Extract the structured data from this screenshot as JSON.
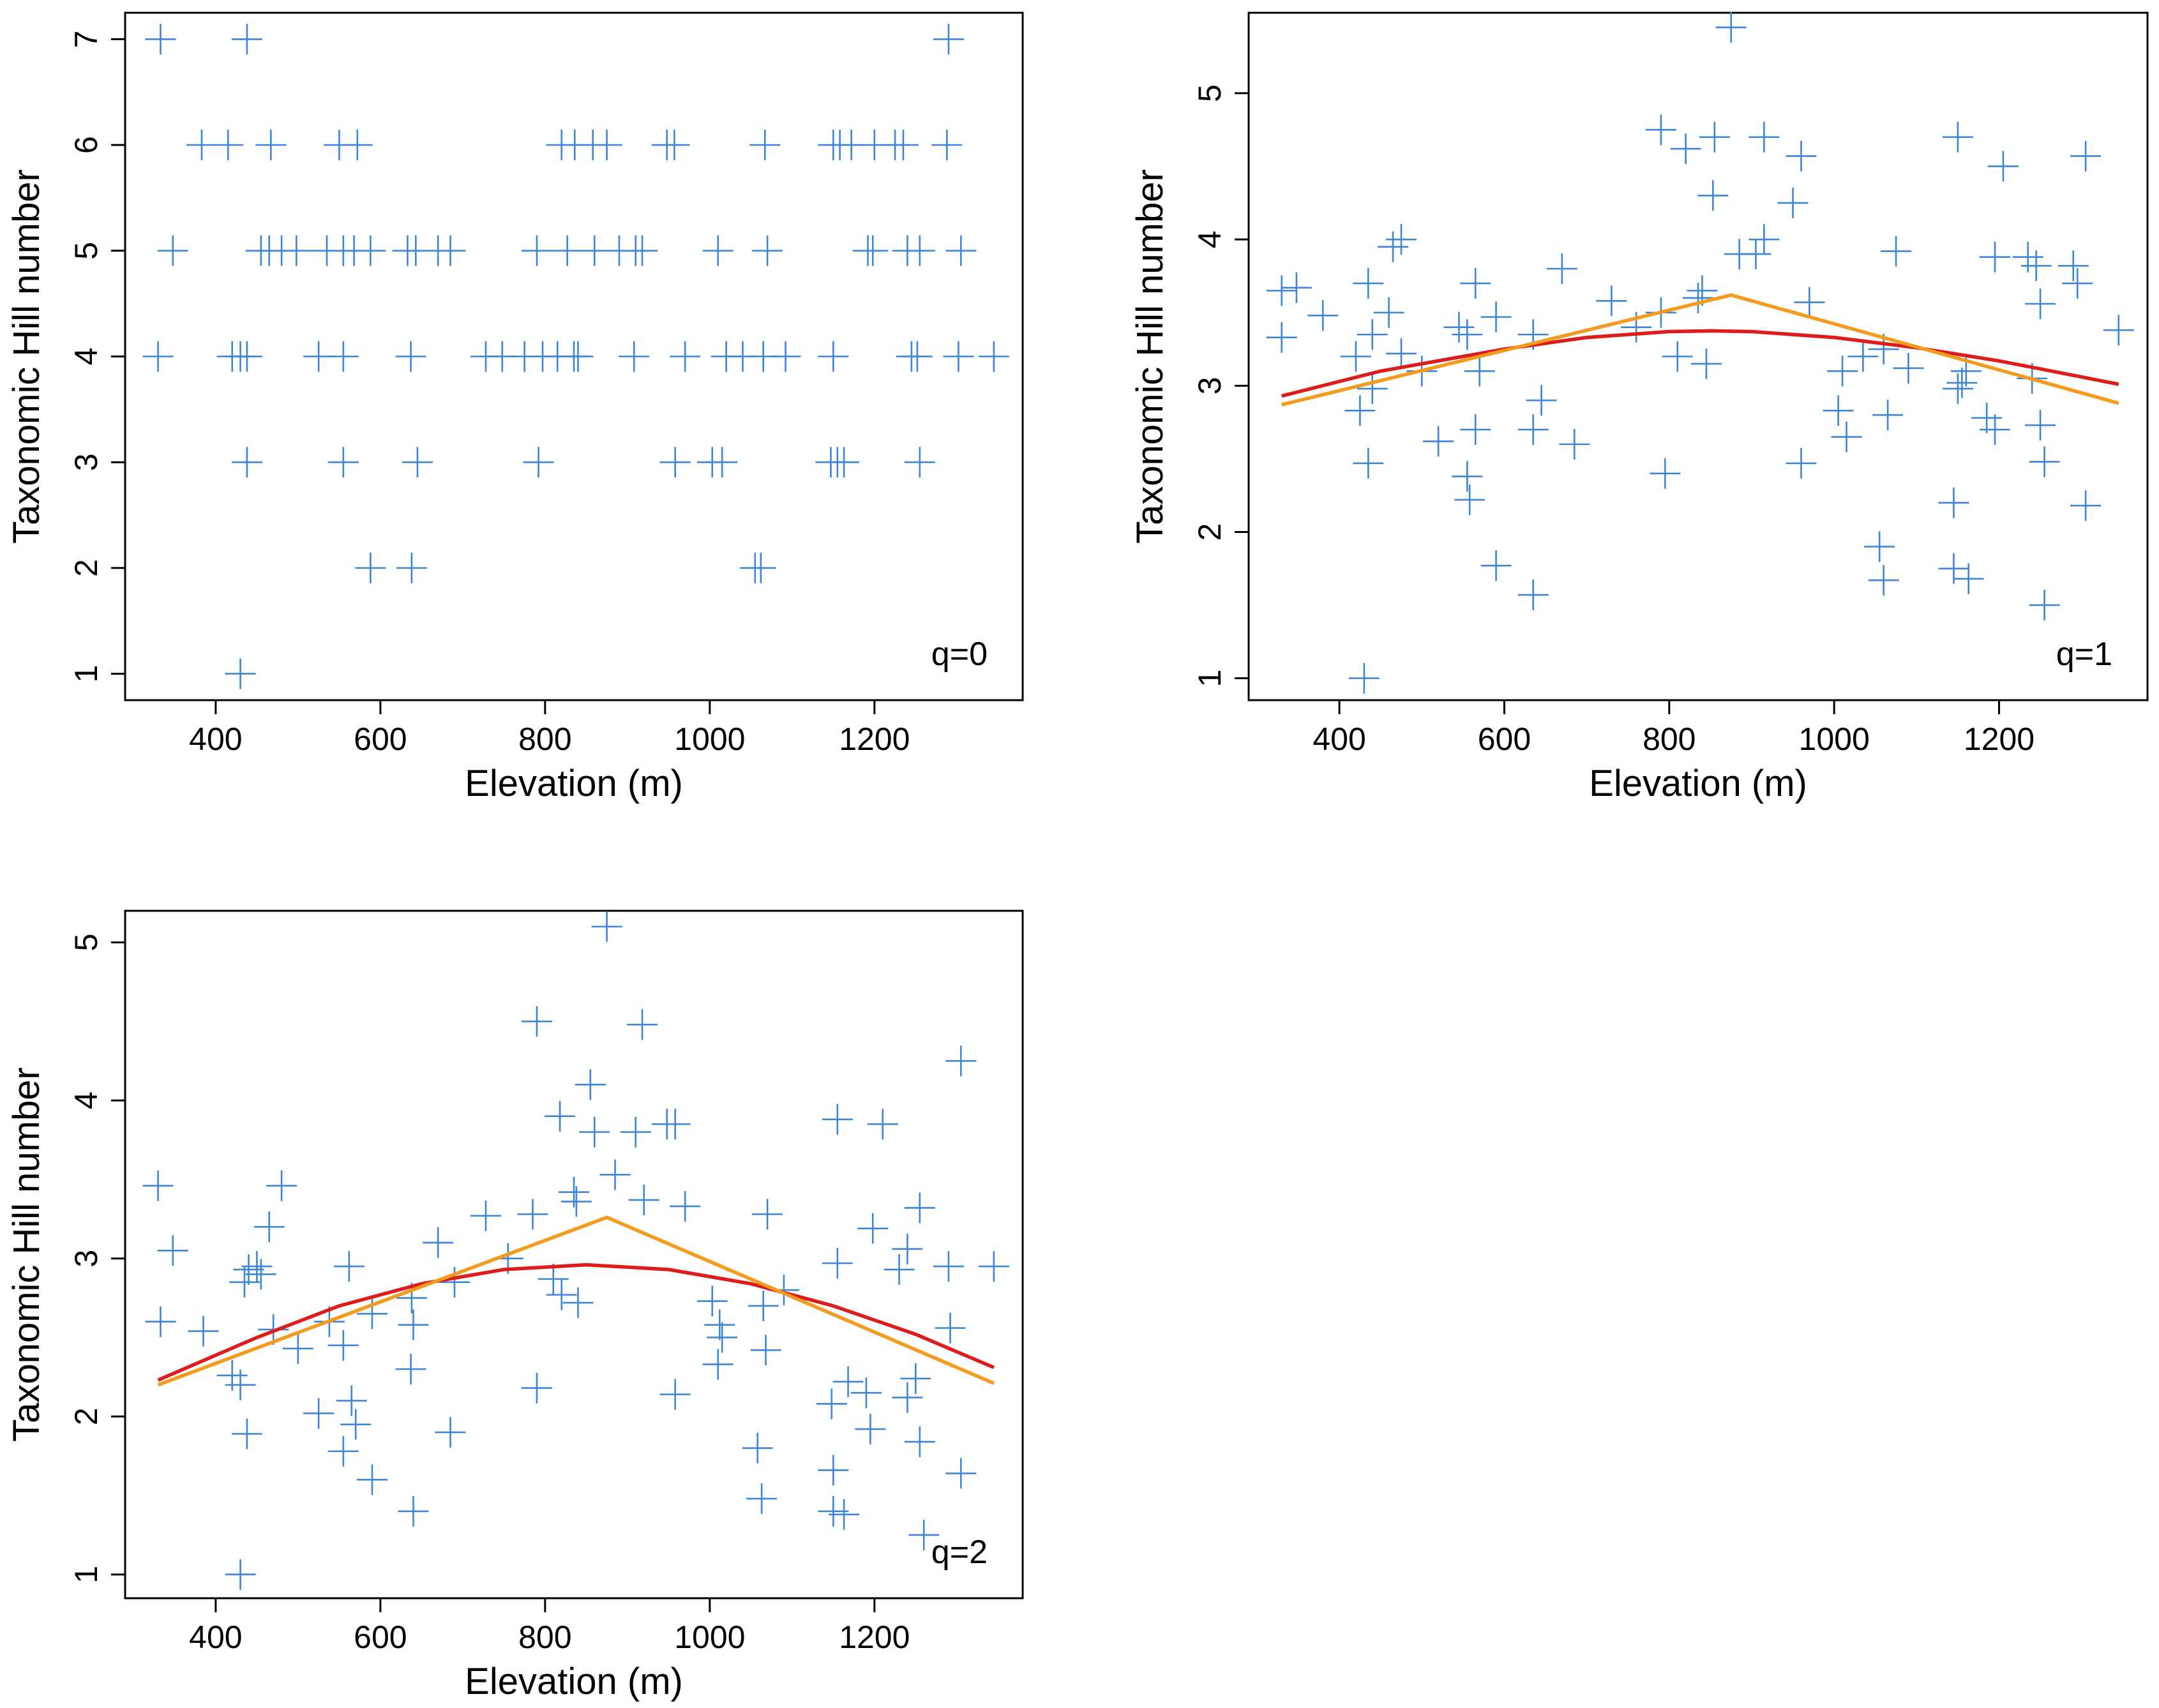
{
  "figure": {
    "description": "",
    "point_color": "#3d86d6",
    "quadratic_fit_color": "#dd1c1c",
    "segmented_fit_color": "#f29b1f"
  },
  "chart_data": [
    {
      "type": "scatter",
      "panel_label": "q=0",
      "xlabel": "Elevation (m)",
      "ylabel": "Taxonomic Hill number",
      "xlim": [
        290,
        1380
      ],
      "ylim": [
        0.75,
        7.25
      ],
      "xticks": [
        400,
        600,
        800,
        1000,
        1200
      ],
      "yticks": [
        1,
        2,
        3,
        4,
        5,
        6,
        7
      ],
      "grid": false,
      "marker": "plus",
      "points": [
        [
          333,
          7
        ],
        [
          438,
          7
        ],
        [
          1290,
          7
        ],
        [
          383,
          6
        ],
        [
          415,
          6
        ],
        [
          467,
          6
        ],
        [
          550,
          6
        ],
        [
          572,
          6
        ],
        [
          820,
          6
        ],
        [
          836,
          6
        ],
        [
          858,
          6
        ],
        [
          875,
          6
        ],
        [
          948,
          6
        ],
        [
          957,
          6
        ],
        [
          1067,
          6
        ],
        [
          1150,
          6
        ],
        [
          1158,
          6
        ],
        [
          1172,
          6
        ],
        [
          1200,
          6
        ],
        [
          1225,
          6
        ],
        [
          1235,
          6
        ],
        [
          1288,
          6
        ],
        [
          348,
          5
        ],
        [
          455,
          5
        ],
        [
          465,
          5
        ],
        [
          480,
          5
        ],
        [
          498,
          5
        ],
        [
          535,
          5
        ],
        [
          555,
          5
        ],
        [
          568,
          5
        ],
        [
          588,
          5
        ],
        [
          633,
          5
        ],
        [
          643,
          5
        ],
        [
          670,
          5
        ],
        [
          685,
          5
        ],
        [
          790,
          5
        ],
        [
          827,
          5
        ],
        [
          860,
          5
        ],
        [
          890,
          5
        ],
        [
          910,
          5
        ],
        [
          918,
          5
        ],
        [
          1010,
          5
        ],
        [
          1070,
          5
        ],
        [
          1192,
          5
        ],
        [
          1198,
          5
        ],
        [
          1240,
          5
        ],
        [
          1255,
          5
        ],
        [
          1305,
          5
        ],
        [
          330,
          4
        ],
        [
          420,
          4
        ],
        [
          430,
          4
        ],
        [
          438,
          4
        ],
        [
          525,
          4
        ],
        [
          555,
          4
        ],
        [
          637,
          4
        ],
        [
          728,
          4
        ],
        [
          748,
          4
        ],
        [
          775,
          4
        ],
        [
          797,
          4
        ],
        [
          815,
          4
        ],
        [
          835,
          4
        ],
        [
          840,
          4
        ],
        [
          908,
          4
        ],
        [
          970,
          4
        ],
        [
          1020,
          4
        ],
        [
          1040,
          4
        ],
        [
          1065,
          4
        ],
        [
          1092,
          4
        ],
        [
          1150,
          4
        ],
        [
          1245,
          4
        ],
        [
          1252,
          4
        ],
        [
          1302,
          4
        ],
        [
          1345,
          4
        ],
        [
          438,
          3
        ],
        [
          555,
          3
        ],
        [
          645,
          3
        ],
        [
          792,
          3
        ],
        [
          958,
          3
        ],
        [
          1003,
          3
        ],
        [
          1015,
          3
        ],
        [
          1147,
          3
        ],
        [
          1155,
          3
        ],
        [
          1163,
          3
        ],
        [
          1255,
          3
        ],
        [
          588,
          2
        ],
        [
          638,
          2
        ],
        [
          1055,
          2
        ],
        [
          1062,
          2
        ],
        [
          430,
          1
        ]
      ]
    },
    {
      "type": "scatter",
      "panel_label": "q=1",
      "xlabel": "Elevation (m)",
      "ylabel": "Taxonomic Hill number",
      "xlim": [
        290,
        1380
      ],
      "ylim": [
        0.85,
        5.55
      ],
      "xticks": [
        400,
        600,
        800,
        1000,
        1200
      ],
      "yticks": [
        1,
        2,
        3,
        4,
        5
      ],
      "grid": false,
      "marker": "plus",
      "points": [
        [
          875,
          5.45
        ],
        [
          790,
          4.75
        ],
        [
          855,
          4.7
        ],
        [
          915,
          4.7
        ],
        [
          820,
          4.62
        ],
        [
          960,
          4.57
        ],
        [
          1150,
          4.7
        ],
        [
          1205,
          4.5
        ],
        [
          1305,
          4.57
        ],
        [
          853,
          4.3
        ],
        [
          950,
          4.25
        ],
        [
          885,
          3.9
        ],
        [
          905,
          3.9
        ],
        [
          915,
          4.0
        ],
        [
          1075,
          3.92
        ],
        [
          1195,
          3.88
        ],
        [
          1235,
          3.88
        ],
        [
          1245,
          3.82
        ],
        [
          1290,
          3.82
        ],
        [
          1295,
          3.7
        ],
        [
          330,
          3.65
        ],
        [
          348,
          3.67
        ],
        [
          435,
          3.7
        ],
        [
          465,
          3.95
        ],
        [
          475,
          4.0
        ],
        [
          565,
          3.7
        ],
        [
          670,
          3.8
        ],
        [
          730,
          3.58
        ],
        [
          790,
          3.5
        ],
        [
          835,
          3.6
        ],
        [
          840,
          3.65
        ],
        [
          970,
          3.57
        ],
        [
          1250,
          3.56
        ],
        [
          330,
          3.33
        ],
        [
          380,
          3.48
        ],
        [
          420,
          3.2
        ],
        [
          440,
          3.35
        ],
        [
          460,
          3.5
        ],
        [
          475,
          3.22
        ],
        [
          545,
          3.4
        ],
        [
          555,
          3.35
        ],
        [
          590,
          3.47
        ],
        [
          635,
          3.35
        ],
        [
          760,
          3.4
        ],
        [
          810,
          3.2
        ],
        [
          845,
          3.15
        ],
        [
          1010,
          3.1
        ],
        [
          1035,
          3.2
        ],
        [
          1060,
          3.25
        ],
        [
          1090,
          3.12
        ],
        [
          1160,
          3.1
        ],
        [
          1240,
          3.05
        ],
        [
          425,
          2.83
        ],
        [
          440,
          2.98
        ],
        [
          500,
          3.1
        ],
        [
          570,
          3.1
        ],
        [
          645,
          2.9
        ],
        [
          1005,
          2.83
        ],
        [
          1150,
          2.98
        ],
        [
          1155,
          3.02
        ],
        [
          1185,
          2.78
        ],
        [
          1195,
          2.7
        ],
        [
          435,
          2.47
        ],
        [
          520,
          2.62
        ],
        [
          555,
          2.38
        ],
        [
          558,
          2.22
        ],
        [
          565,
          2.7
        ],
        [
          635,
          2.7
        ],
        [
          685,
          2.6
        ],
        [
          795,
          2.4
        ],
        [
          960,
          2.47
        ],
        [
          1015,
          2.65
        ],
        [
          1065,
          2.8
        ],
        [
          1250,
          2.73
        ],
        [
          1255,
          2.48
        ],
        [
          1305,
          2.18
        ],
        [
          590,
          1.77
        ],
        [
          635,
          1.57
        ],
        [
          1055,
          1.9
        ],
        [
          1060,
          1.67
        ],
        [
          1145,
          2.2
        ],
        [
          1145,
          1.75
        ],
        [
          1163,
          1.68
        ],
        [
          1255,
          1.5
        ],
        [
          430,
          1.0
        ],
        [
          1345,
          3.38
        ]
      ],
      "fits": {
        "quadratic": [
          [
            330,
            2.93
          ],
          [
            450,
            3.1
          ],
          [
            600,
            3.25
          ],
          [
            700,
            3.33
          ],
          [
            800,
            3.37
          ],
          [
            850,
            3.375
          ],
          [
            900,
            3.37
          ],
          [
            1000,
            3.33
          ],
          [
            1100,
            3.26
          ],
          [
            1200,
            3.17
          ],
          [
            1300,
            3.06
          ],
          [
            1345,
            3.01
          ]
        ],
        "segmented": [
          [
            330,
            2.87
          ],
          [
            875,
            3.62
          ],
          [
            1345,
            2.88
          ]
        ]
      }
    },
    {
      "type": "scatter",
      "panel_label": "q=2",
      "xlabel": "Elevation (m)",
      "ylabel": "Taxonomic Hill number",
      "xlim": [
        290,
        1380
      ],
      "ylim": [
        0.85,
        5.2
      ],
      "xticks": [
        400,
        600,
        800,
        1000,
        1200
      ],
      "yticks": [
        1,
        2,
        3,
        4,
        5
      ],
      "grid": false,
      "marker": "plus",
      "points": [
        [
          875,
          5.1
        ],
        [
          790,
          4.5
        ],
        [
          918,
          4.48
        ],
        [
          1305,
          4.25
        ],
        [
          818,
          3.9
        ],
        [
          855,
          4.1
        ],
        [
          860,
          3.8
        ],
        [
          910,
          3.8
        ],
        [
          948,
          3.85
        ],
        [
          958,
          3.85
        ],
        [
          1155,
          3.88
        ],
        [
          1210,
          3.85
        ],
        [
          330,
          3.46
        ],
        [
          480,
          3.46
        ],
        [
          885,
          3.53
        ],
        [
          835,
          3.42
        ],
        [
          838,
          3.36
        ],
        [
          920,
          3.37
        ],
        [
          970,
          3.33
        ],
        [
          1070,
          3.28
        ],
        [
          1198,
          3.19
        ],
        [
          1255,
          3.32
        ],
        [
          728,
          3.27
        ],
        [
          785,
          3.28
        ],
        [
          465,
          3.2
        ],
        [
          348,
          3.05
        ],
        [
          440,
          2.93
        ],
        [
          450,
          2.95
        ],
        [
          455,
          2.9
        ],
        [
          435,
          2.85
        ],
        [
          562,
          2.95
        ],
        [
          670,
          3.1
        ],
        [
          755,
          3.0
        ],
        [
          1155,
          2.97
        ],
        [
          1240,
          3.06
        ],
        [
          1290,
          2.95
        ],
        [
          1345,
          2.95
        ],
        [
          1230,
          2.93
        ],
        [
          333,
          2.6
        ],
        [
          385,
          2.54
        ],
        [
          420,
          2.26
        ],
        [
          430,
          2.2
        ],
        [
          470,
          2.55
        ],
        [
          500,
          2.43
        ],
        [
          538,
          2.6
        ],
        [
          555,
          2.45
        ],
        [
          590,
          2.65
        ],
        [
          638,
          2.75
        ],
        [
          640,
          2.58
        ],
        [
          690,
          2.85
        ],
        [
          810,
          2.87
        ],
        [
          820,
          2.77
        ],
        [
          840,
          2.72
        ],
        [
          1003,
          2.73
        ],
        [
          1012,
          2.58
        ],
        [
          1015,
          2.5
        ],
        [
          1065,
          2.7
        ],
        [
          1068,
          2.42
        ],
        [
          1090,
          2.8
        ],
        [
          1292,
          2.56
        ],
        [
          438,
          1.89
        ],
        [
          525,
          2.02
        ],
        [
          555,
          1.78
        ],
        [
          565,
          2.1
        ],
        [
          570,
          1.95
        ],
        [
          590,
          1.6
        ],
        [
          637,
          2.3
        ],
        [
          640,
          1.4
        ],
        [
          685,
          1.9
        ],
        [
          790,
          2.18
        ],
        [
          958,
          2.14
        ],
        [
          1010,
          2.33
        ],
        [
          1058,
          1.8
        ],
        [
          1063,
          1.48
        ],
        [
          1148,
          2.08
        ],
        [
          1150,
          1.66
        ],
        [
          1150,
          1.4
        ],
        [
          1163,
          1.38
        ],
        [
          1168,
          2.22
        ],
        [
          1190,
          2.15
        ],
        [
          1195,
          1.92
        ],
        [
          1240,
          2.12
        ],
        [
          1250,
          2.24
        ],
        [
          1255,
          1.84
        ],
        [
          1260,
          1.25
        ],
        [
          1305,
          1.64
        ],
        [
          430,
          1.0
        ]
      ],
      "fits": {
        "quadratic": [
          [
            330,
            2.23
          ],
          [
            450,
            2.5
          ],
          [
            550,
            2.7
          ],
          [
            650,
            2.84
          ],
          [
            750,
            2.93
          ],
          [
            850,
            2.96
          ],
          [
            950,
            2.93
          ],
          [
            1050,
            2.84
          ],
          [
            1150,
            2.7
          ],
          [
            1250,
            2.52
          ],
          [
            1345,
            2.31
          ]
        ],
        "segmented": [
          [
            330,
            2.2
          ],
          [
            875,
            3.26
          ],
          [
            1345,
            2.21
          ]
        ]
      }
    }
  ]
}
